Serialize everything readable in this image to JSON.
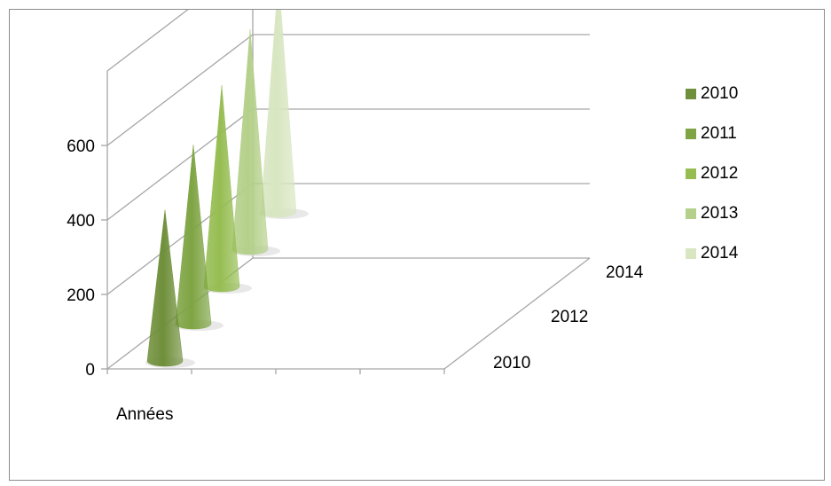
{
  "chart_data": {
    "type": "bar",
    "style": "3d-cone",
    "categories": [
      "Années"
    ],
    "series": [
      {
        "name": "2010",
        "color": "#6f8f3a",
        "values": [
          405
        ]
      },
      {
        "name": "2011",
        "color": "#7ea443",
        "values": [
          480
        ]
      },
      {
        "name": "2012",
        "color": "#96bd52",
        "values": [
          540
        ]
      },
      {
        "name": "2013",
        "color": "#b4d08a",
        "values": [
          590
        ]
      },
      {
        "name": "2014",
        "color": "#d8e6c1",
        "values": [
          630
        ]
      }
    ],
    "y_ticks": [
      "0",
      "200",
      "400",
      "600"
    ],
    "ylim": [
      0,
      800
    ],
    "depth_ticks": [
      "2010",
      "2012",
      "2014"
    ],
    "grid": true,
    "legend_position": "right",
    "title": ""
  }
}
